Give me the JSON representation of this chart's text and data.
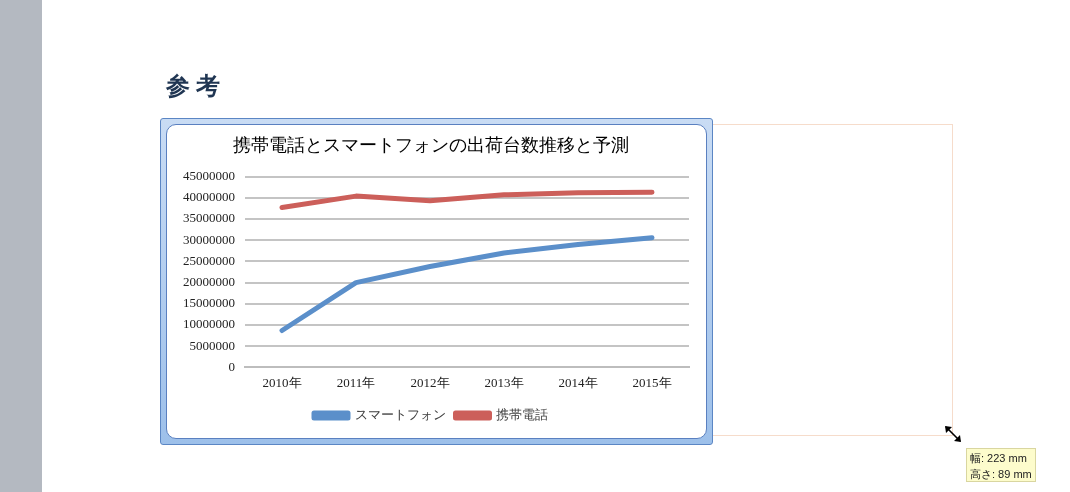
{
  "chart_data": {
    "type": "line",
    "title": "携帯電話とスマートフォンの出荷台数推移と予測",
    "categories": [
      "2010年",
      "2011年",
      "2012年",
      "2013年",
      "2014年",
      "2015年"
    ],
    "series": [
      {
        "name": "スマートフォン",
        "color": "#5b8fca",
        "values": [
          8700000,
          20000000,
          23800000,
          27000000,
          29000000,
          30600000
        ]
      },
      {
        "name": "携帯電話",
        "color": "#cc5f5a",
        "values": [
          37700000,
          40400000,
          39300000,
          40700000,
          41200000,
          41300000
        ]
      }
    ],
    "ylim": [
      0,
      45000000
    ],
    "yticks": [
      0,
      5000000,
      10000000,
      15000000,
      20000000,
      25000000,
      30000000,
      35000000,
      40000000,
      45000000
    ],
    "grid": "y",
    "legend": "bottom",
    "marker": "none",
    "line_style": "solid",
    "annotations": [
      "参考",
      "幅: 223 mm",
      "高さ: 89 mm"
    ]
  }
}
